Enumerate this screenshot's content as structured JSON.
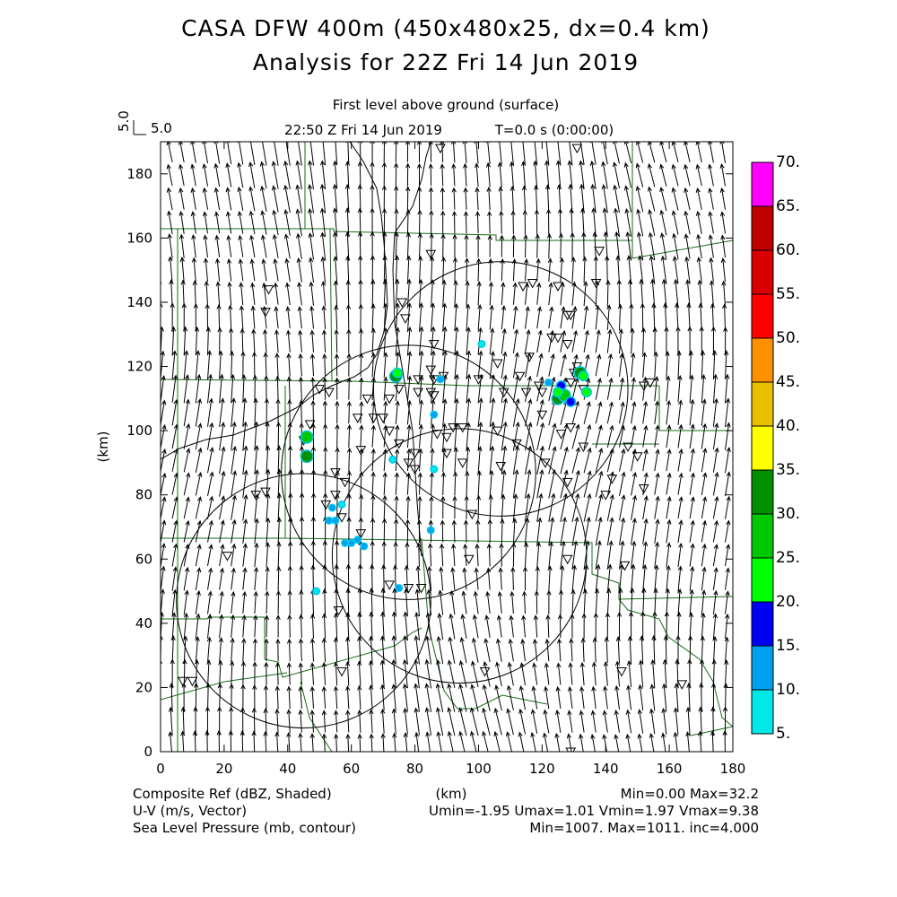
{
  "title": {
    "line1": "CASA DFW 400m (450x480x25, dx=0.4 km)",
    "line2": "Analysis for 22Z Fri 14 Jun 2019"
  },
  "subtitle": "First level above ground (surface)",
  "time_label": "22:50 Z Fri 14 Jun 2019",
  "time_offset": "T=0.0 s (0:00:00)",
  "vector_ref": {
    "rotated": "5.0",
    "value": "5.0"
  },
  "map_data": {
    "xlabel": "(km)",
    "ylabel": "(km)",
    "xlim": [
      0,
      180
    ],
    "ylim": [
      0,
      190
    ],
    "x_ticks": [
      "0",
      "20",
      "40",
      "60",
      "80",
      "100",
      "120",
      "140",
      "160",
      "180"
    ],
    "y_ticks": [
      "0",
      "20",
      "40",
      "60",
      "80",
      "100",
      "120",
      "140",
      "160",
      "180"
    ],
    "radar_rings": [
      {
        "cx": 107,
        "cy": 113,
        "r": 40
      },
      {
        "cx": 78,
        "cy": 87,
        "r": 40
      },
      {
        "cx": 94,
        "cy": 61,
        "r": 40
      },
      {
        "cx": 45,
        "cy": 47,
        "r": 40
      }
    ],
    "radar_sites": [
      [
        7,
        22
      ],
      [
        10,
        22
      ],
      [
        21,
        61
      ],
      [
        30,
        80
      ],
      [
        33,
        81
      ],
      [
        34,
        144
      ],
      [
        33,
        137
      ],
      [
        45,
        97
      ],
      [
        47,
        102
      ],
      [
        50,
        113
      ],
      [
        53,
        112
      ],
      [
        52,
        77
      ],
      [
        55,
        87
      ],
      [
        55,
        80
      ],
      [
        56,
        44
      ],
      [
        57,
        25
      ],
      [
        58,
        84
      ],
      [
        57,
        73
      ],
      [
        62,
        104
      ],
      [
        63,
        94
      ],
      [
        63,
        68
      ],
      [
        65,
        110
      ],
      [
        67,
        104
      ],
      [
        70,
        104
      ],
      [
        72,
        110
      ],
      [
        72,
        100
      ],
      [
        75,
        96
      ],
      [
        75,
        113
      ],
      [
        78,
        90
      ],
      [
        80,
        88
      ],
      [
        80,
        93
      ],
      [
        82,
        51
      ],
      [
        81,
        112
      ],
      [
        81,
        116
      ],
      [
        76,
        140
      ],
      [
        77,
        135
      ],
      [
        78,
        51
      ],
      [
        72,
        52
      ],
      [
        85,
        119
      ],
      [
        86,
        127
      ],
      [
        86,
        116
      ],
      [
        85,
        112
      ],
      [
        86,
        111
      ],
      [
        87,
        99
      ],
      [
        89,
        117
      ],
      [
        85,
        155
      ],
      [
        88,
        188
      ],
      [
        90,
        93
      ],
      [
        90,
        98
      ],
      [
        92,
        101
      ],
      [
        95,
        101
      ],
      [
        95,
        90
      ],
      [
        97,
        60
      ],
      [
        98,
        74
      ],
      [
        102,
        25
      ],
      [
        100,
        116
      ],
      [
        106,
        121
      ],
      [
        108,
        112
      ],
      [
        106,
        100
      ],
      [
        107,
        89
      ],
      [
        112,
        96
      ],
      [
        114,
        145
      ],
      [
        117,
        146
      ],
      [
        113,
        117
      ],
      [
        115,
        112
      ],
      [
        116,
        123
      ],
      [
        119,
        114
      ],
      [
        120,
        112
      ],
      [
        120,
        105
      ],
      [
        121,
        90
      ],
      [
        123,
        129
      ],
      [
        125,
        129
      ],
      [
        125,
        145
      ],
      [
        128,
        127
      ],
      [
        130,
        118
      ],
      [
        126,
        99
      ],
      [
        128,
        136
      ],
      [
        129,
        136
      ],
      [
        129,
        115
      ],
      [
        129,
        101
      ],
      [
        128,
        60
      ],
      [
        128,
        84
      ],
      [
        131,
        120
      ],
      [
        133,
        113
      ],
      [
        133,
        95
      ],
      [
        137,
        146
      ],
      [
        138,
        156
      ],
      [
        140,
        80
      ],
      [
        142,
        85
      ],
      [
        146,
        58
      ],
      [
        145,
        25
      ],
      [
        147,
        95
      ],
      [
        150,
        92
      ],
      [
        152,
        82
      ],
      [
        152,
        114
      ],
      [
        154,
        115
      ],
      [
        164,
        21
      ],
      [
        131,
        188
      ],
      [
        129,
        0
      ]
    ],
    "echoes": [
      {
        "x": 74,
        "y": 117,
        "dbz": 30
      },
      {
        "x": 74.5,
        "y": 118,
        "dbz": 20
      },
      {
        "x": 88,
        "y": 116,
        "dbz": 10
      },
      {
        "x": 101,
        "y": 127,
        "dbz": 5
      },
      {
        "x": 46,
        "y": 98,
        "dbz": 25
      },
      {
        "x": 46,
        "y": 92,
        "dbz": 30
      },
      {
        "x": 86,
        "y": 105,
        "dbz": 10
      },
      {
        "x": 86,
        "y": 88,
        "dbz": 5
      },
      {
        "x": 73,
        "y": 91,
        "dbz": 5
      },
      {
        "x": 54,
        "y": 76,
        "dbz": 10
      },
      {
        "x": 53,
        "y": 72,
        "dbz": 10
      },
      {
        "x": 55,
        "y": 72,
        "dbz": 10
      },
      {
        "x": 58,
        "y": 65,
        "dbz": 10
      },
      {
        "x": 60,
        "y": 65,
        "dbz": 10
      },
      {
        "x": 62,
        "y": 66,
        "dbz": 10
      },
      {
        "x": 64,
        "y": 64,
        "dbz": 10
      },
      {
        "x": 75,
        "y": 51,
        "dbz": 10
      },
      {
        "x": 49,
        "y": 50,
        "dbz": 5
      },
      {
        "x": 57,
        "y": 77,
        "dbz": 5
      },
      {
        "x": 85,
        "y": 69,
        "dbz": 10
      },
      {
        "x": 122,
        "y": 115,
        "dbz": 10
      },
      {
        "x": 126,
        "y": 114,
        "dbz": 15
      },
      {
        "x": 125,
        "y": 110,
        "dbz": 30
      },
      {
        "x": 127,
        "y": 111,
        "dbz": 25
      },
      {
        "x": 129,
        "y": 109,
        "dbz": 15
      },
      {
        "x": 132,
        "y": 118,
        "dbz": 30
      },
      {
        "x": 133,
        "y": 117,
        "dbz": 20
      },
      {
        "x": 134,
        "y": 112,
        "dbz": 20
      },
      {
        "x": 125,
        "y": 112,
        "dbz": 20
      }
    ]
  },
  "colorbar": {
    "labels": [
      "5.",
      "10.",
      "15.",
      "20.",
      "25.",
      "30.",
      "35.",
      "40.",
      "45.",
      "50.",
      "55.",
      "60.",
      "65.",
      "70."
    ],
    "colors": [
      "#00e8e8",
      "#00a0f0",
      "#0000f0",
      "#00ff00",
      "#00c800",
      "#009000",
      "#ffff00",
      "#e8c000",
      "#ff9000",
      "#ff0000",
      "#d80000",
      "#c00000",
      "#ff00ff"
    ]
  },
  "footer": {
    "left": [
      "Composite Ref (dBZ, Shaded)",
      "U-V (m/s, Vector)",
      "Sea Level Pressure (mb, contour)"
    ],
    "center": "(km)",
    "right": [
      "Min=0.00 Max=32.2",
      "Umin=-1.95 Umax=1.01 Vmin=1.97 Vmax=9.38",
      "Min=1007. Max=1011. inc=4.000"
    ]
  },
  "colors": {
    "county_lines": "#1a6b1a",
    "rings": "#000000",
    "vectors": "#000000"
  }
}
